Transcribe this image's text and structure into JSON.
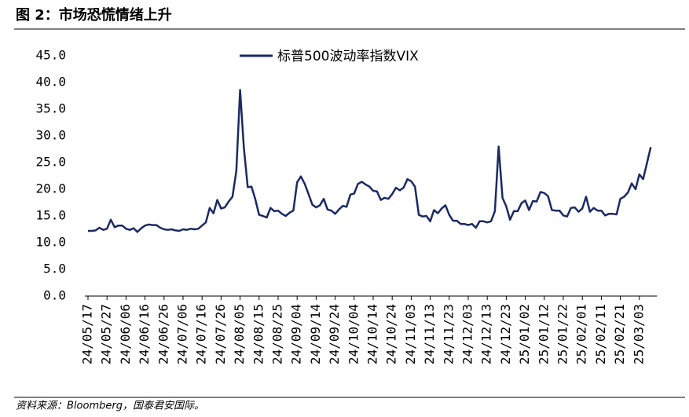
{
  "chart_data": {
    "type": "line",
    "title": "图 2：市场恐慌情绪上升",
    "source": "资料来源：Bloomberg，国泰君安国际。",
    "categories": [
      "24/05/17",
      null,
      null,
      null,
      null,
      "24/05/27",
      null,
      null,
      null,
      null,
      "24/06/06",
      null,
      null,
      null,
      null,
      "24/06/16",
      null,
      null,
      null,
      null,
      "24/06/26",
      null,
      null,
      null,
      null,
      "24/07/06",
      null,
      null,
      null,
      null,
      "24/07/16",
      null,
      null,
      null,
      null,
      "24/07/26",
      null,
      null,
      null,
      null,
      "24/08/05",
      null,
      null,
      null,
      null,
      "24/08/15",
      null,
      null,
      null,
      null,
      "24/08/25",
      null,
      null,
      null,
      null,
      "24/09/04",
      null,
      null,
      null,
      null,
      "24/09/14",
      null,
      null,
      null,
      null,
      "24/09/24",
      null,
      null,
      null,
      null,
      "24/10/04",
      null,
      null,
      null,
      null,
      "24/10/14",
      null,
      null,
      null,
      null,
      "24/10/24",
      null,
      null,
      null,
      null,
      "24/11/03",
      null,
      null,
      null,
      null,
      "24/11/13",
      null,
      null,
      null,
      null,
      "24/11/23",
      null,
      null,
      null,
      null,
      "24/12/03",
      null,
      null,
      null,
      null,
      "24/12/13",
      null,
      null,
      null,
      null,
      "24/12/23",
      null,
      null,
      null,
      null,
      "25/01/02",
      null,
      null,
      null,
      null,
      "25/01/12",
      null,
      null,
      null,
      null,
      "25/01/22",
      null,
      null,
      null,
      null,
      "25/02/01",
      null,
      null,
      null,
      null,
      "25/02/11",
      null,
      null,
      null,
      null,
      "25/02/21",
      null,
      null,
      null,
      null,
      "25/03/03",
      null,
      null,
      null
    ],
    "series": [
      {
        "name": "标普500波动率指数VIX",
        "color": "#1b2a63",
        "values": [
          12.2,
          12.2,
          12.3,
          12.8,
          12.4,
          12.6,
          14.3,
          12.9,
          13.2,
          13.2,
          12.6,
          12.4,
          12.7,
          12.0,
          12.7,
          13.2,
          13.4,
          13.3,
          13.3,
          12.8,
          12.5,
          12.4,
          12.5,
          12.3,
          12.2,
          12.5,
          12.4,
          12.6,
          12.5,
          12.6,
          13.2,
          13.8,
          16.5,
          15.5,
          18.0,
          16.4,
          16.6,
          17.7,
          18.6,
          23.4,
          38.6,
          27.8,
          20.4,
          20.5,
          18.1,
          15.2,
          15.0,
          14.7,
          16.5,
          15.9,
          16.0,
          15.4,
          15.0,
          15.6,
          16.0,
          21.3,
          22.4,
          21.0,
          19.1,
          17.1,
          16.6,
          17.0,
          18.2,
          16.2,
          16.0,
          15.4,
          16.2,
          16.9,
          16.7,
          19.0,
          19.2,
          21.0,
          21.4,
          20.9,
          20.5,
          19.7,
          19.6,
          18.0,
          18.4,
          18.2,
          19.1,
          20.3,
          19.8,
          20.3,
          21.9,
          21.5,
          20.5,
          15.2,
          14.9,
          15.0,
          14.0,
          16.1,
          15.5,
          16.4,
          17.0,
          15.2,
          14.1,
          14.1,
          13.5,
          13.5,
          13.3,
          13.5,
          12.8,
          14.0,
          14.0,
          13.8,
          14.0,
          15.9,
          28.0,
          18.4,
          16.8,
          14.3,
          15.9,
          15.9,
          17.4,
          17.9,
          16.1,
          17.8,
          17.7,
          19.5,
          19.3,
          18.7,
          16.1,
          16.0,
          16.0,
          15.1,
          14.9,
          16.5,
          16.6,
          15.8,
          16.4,
          18.6,
          15.8,
          16.5,
          16.0,
          16.0,
          15.1,
          15.4,
          15.4,
          15.3,
          18.2,
          18.6,
          19.4,
          21.1,
          20.0,
          22.8,
          21.9,
          24.9,
          27.9
        ]
      }
    ],
    "ylim": [
      0,
      45
    ],
    "yticks": [
      {
        "value": 0,
        "label": "0.0"
      },
      {
        "value": 5,
        "label": "5.0"
      },
      {
        "value": 10,
        "label": "10.0"
      },
      {
        "value": 15,
        "label": "15.0"
      },
      {
        "value": 20,
        "label": "20.0"
      },
      {
        "value": 25,
        "label": "25.0"
      },
      {
        "value": 30,
        "label": "30.0"
      },
      {
        "value": 35,
        "label": "35.0"
      },
      {
        "value": 40,
        "label": "40.0"
      },
      {
        "value": 45,
        "label": "45.0"
      }
    ],
    "legend": "top"
  }
}
